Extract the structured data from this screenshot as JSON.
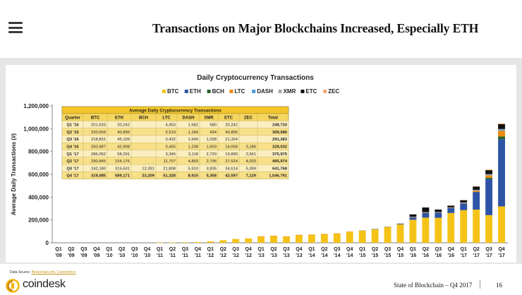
{
  "header": {
    "title": "Transactions on Major Blockchains Increased, Especially ETH"
  },
  "footer": {
    "data_source_label": "Data Source: ",
    "data_source_links": "Blockchain.info, Coinmetrics",
    "brand": "coindesk",
    "report": "State of Blockchain – Q4 2017",
    "page": "16"
  },
  "chart_data": {
    "type": "bar",
    "stacked": true,
    "title": "Daily Cryptocurrency Transactions",
    "xlabel": "",
    "ylabel": "Average Daily Transactions (#)",
    "ylim": [
      0,
      1200000
    ],
    "yticks": [
      0,
      200000,
      400000,
      600000,
      800000,
      1000000,
      1200000
    ],
    "ytick_labels": [
      "0",
      "200,000",
      "400,000",
      "600,000",
      "800,000",
      "1,000,000",
      "1,200,000"
    ],
    "legend_position": "top-center",
    "categories": [
      "Q1 '09",
      "Q2 '09",
      "Q3 '09",
      "Q4 '09",
      "Q1 '10",
      "Q2 '10",
      "Q3 '10",
      "Q4 '10",
      "Q1 '11",
      "Q2 '11",
      "Q3 '11",
      "Q4 '11",
      "Q1 '12",
      "Q2 '12",
      "Q3 '12",
      "Q4 '12",
      "Q1 '13",
      "Q2 '13",
      "Q3 '13",
      "Q4 '13",
      "Q1 '14",
      "Q2 '14",
      "Q3 '14",
      "Q4 '14",
      "Q1 '15",
      "Q2 '15",
      "Q3 '15",
      "Q4 '15",
      "Q1 '16",
      "Q2 '16",
      "Q3 '16",
      "Q4 '16",
      "Q1 '17",
      "Q2 '17",
      "Q3 '17",
      "Q4 '17"
    ],
    "series": [
      {
        "name": "BTC",
        "color": "#f5c318",
        "values": [
          0,
          0,
          0,
          0,
          0,
          0,
          0,
          0,
          1000,
          3000,
          4500,
          6000,
          12000,
          22000,
          33000,
          38000,
          55000,
          60000,
          55000,
          68000,
          70000,
          75000,
          80000,
          95000,
          105000,
          118000,
          138000,
          162000,
          201633,
          220659,
          218831,
          260987,
          286052,
          290845,
          242180,
          319085
        ]
      },
      {
        "name": "ETH",
        "color": "#2e54a6",
        "values": [
          0,
          0,
          0,
          0,
          0,
          0,
          0,
          0,
          0,
          0,
          0,
          0,
          0,
          0,
          0,
          0,
          0,
          0,
          0,
          0,
          0,
          0,
          0,
          0,
          0,
          0,
          0,
          2000,
          20242,
          40895,
          45109,
          42908,
          58291,
          154176,
          315631,
          589171
        ]
      },
      {
        "name": "BCH",
        "color": "#27632c",
        "values": [
          0,
          0,
          0,
          0,
          0,
          0,
          0,
          0,
          0,
          0,
          0,
          0,
          0,
          0,
          0,
          0,
          0,
          0,
          0,
          0,
          0,
          0,
          0,
          0,
          0,
          0,
          0,
          0,
          0,
          0,
          0,
          0,
          0,
          0,
          12391,
          23209
        ]
      },
      {
        "name": "LTC",
        "color": "#f08a0f",
        "values": [
          0,
          0,
          0,
          0,
          0,
          0,
          0,
          0,
          0,
          0,
          0,
          0,
          0,
          0,
          0,
          0,
          500,
          1000,
          1000,
          1500,
          2000,
          2000,
          2500,
          3000,
          3500,
          3500,
          3500,
          4000,
          4453,
          5519,
          3432,
          3455,
          3345,
          11707,
          21808,
          51328
        ]
      },
      {
        "name": "DASH",
        "color": "#4f9ad9",
        "values": [
          0,
          0,
          0,
          0,
          0,
          0,
          0,
          0,
          0,
          0,
          0,
          0,
          0,
          0,
          0,
          0,
          0,
          0,
          0,
          0,
          0,
          0,
          0,
          0,
          0,
          500,
          700,
          900,
          1582,
          1184,
          1549,
          1238,
          3118,
          4893,
          5910,
          8915
        ]
      },
      {
        "name": "XMR",
        "color": "#a9a9a9",
        "values": [
          0,
          0,
          0,
          0,
          0,
          0,
          0,
          0,
          0,
          0,
          0,
          0,
          0,
          0,
          0,
          0,
          0,
          0,
          0,
          0,
          0,
          0,
          0,
          0,
          200,
          300,
          400,
          500,
          580,
          434,
          1038,
          1600,
          2720,
          2796,
          3835,
          5358
        ]
      },
      {
        "name": "ETC",
        "color": "#111111",
        "values": [
          0,
          0,
          0,
          0,
          0,
          0,
          0,
          0,
          0,
          0,
          0,
          0,
          0,
          0,
          0,
          0,
          0,
          0,
          0,
          0,
          0,
          0,
          0,
          0,
          0,
          0,
          0,
          0,
          20242,
          40895,
          21324,
          14658,
          19890,
          27524,
          34614,
          42597
        ]
      },
      {
        "name": "ZEC",
        "color": "#f5a672",
        "values": [
          0,
          0,
          0,
          0,
          0,
          0,
          0,
          0,
          0,
          0,
          0,
          0,
          0,
          0,
          0,
          0,
          0,
          0,
          0,
          0,
          0,
          0,
          0,
          0,
          0,
          0,
          0,
          0,
          0,
          0,
          0,
          3186,
          2561,
          4033,
          5399,
          7129
        ]
      }
    ],
    "table": {
      "title": "Average Daily Cryptocurrency Transactions",
      "columns": [
        "Quarter",
        "BTC",
        "ETH",
        "BCH",
        "LTC",
        "DASH",
        "XMR",
        "ETC",
        "ZEC",
        "Total"
      ],
      "rows": [
        [
          "Q1 '16",
          "201,633",
          "20,242",
          "",
          "4,453",
          "1,582",
          "580",
          "20,242",
          "",
          "248,733"
        ],
        [
          "Q2 '16",
          "220,659",
          "40,895",
          "",
          "5,519",
          "1,184",
          "434",
          "40,895",
          "",
          "309,586"
        ],
        [
          "Q3 '16",
          "218,831",
          "45,109",
          "",
          "3,432",
          "1,549",
          "1,038",
          "21,324",
          "",
          "291,283"
        ],
        [
          "Q4 '16",
          "260,987",
          "42,908",
          "",
          "3,455",
          "1,238",
          "1,600",
          "14,658",
          "3,186",
          "328,032"
        ],
        [
          "Q1 '17",
          "286,052",
          "58,291",
          "",
          "3,345",
          "3,118",
          "2,720",
          "19,890",
          "2,561",
          "375,975"
        ],
        [
          "Q2 '17",
          "290,845",
          "154,176",
          "",
          "11,707",
          "4,893",
          "2,796",
          "27,524",
          "4,033",
          "495,974"
        ],
        [
          "Q3 '17",
          "242,180",
          "315,631",
          "12,391",
          "21,808",
          "5,910",
          "3,835",
          "34,614",
          "5,399",
          "641,768"
        ],
        [
          "Q4 '17",
          "319,085",
          "589,171",
          "23,209",
          "51,328",
          "8,915",
          "5,358",
          "42,597",
          "7,129",
          "1,046,791"
        ]
      ]
    }
  }
}
